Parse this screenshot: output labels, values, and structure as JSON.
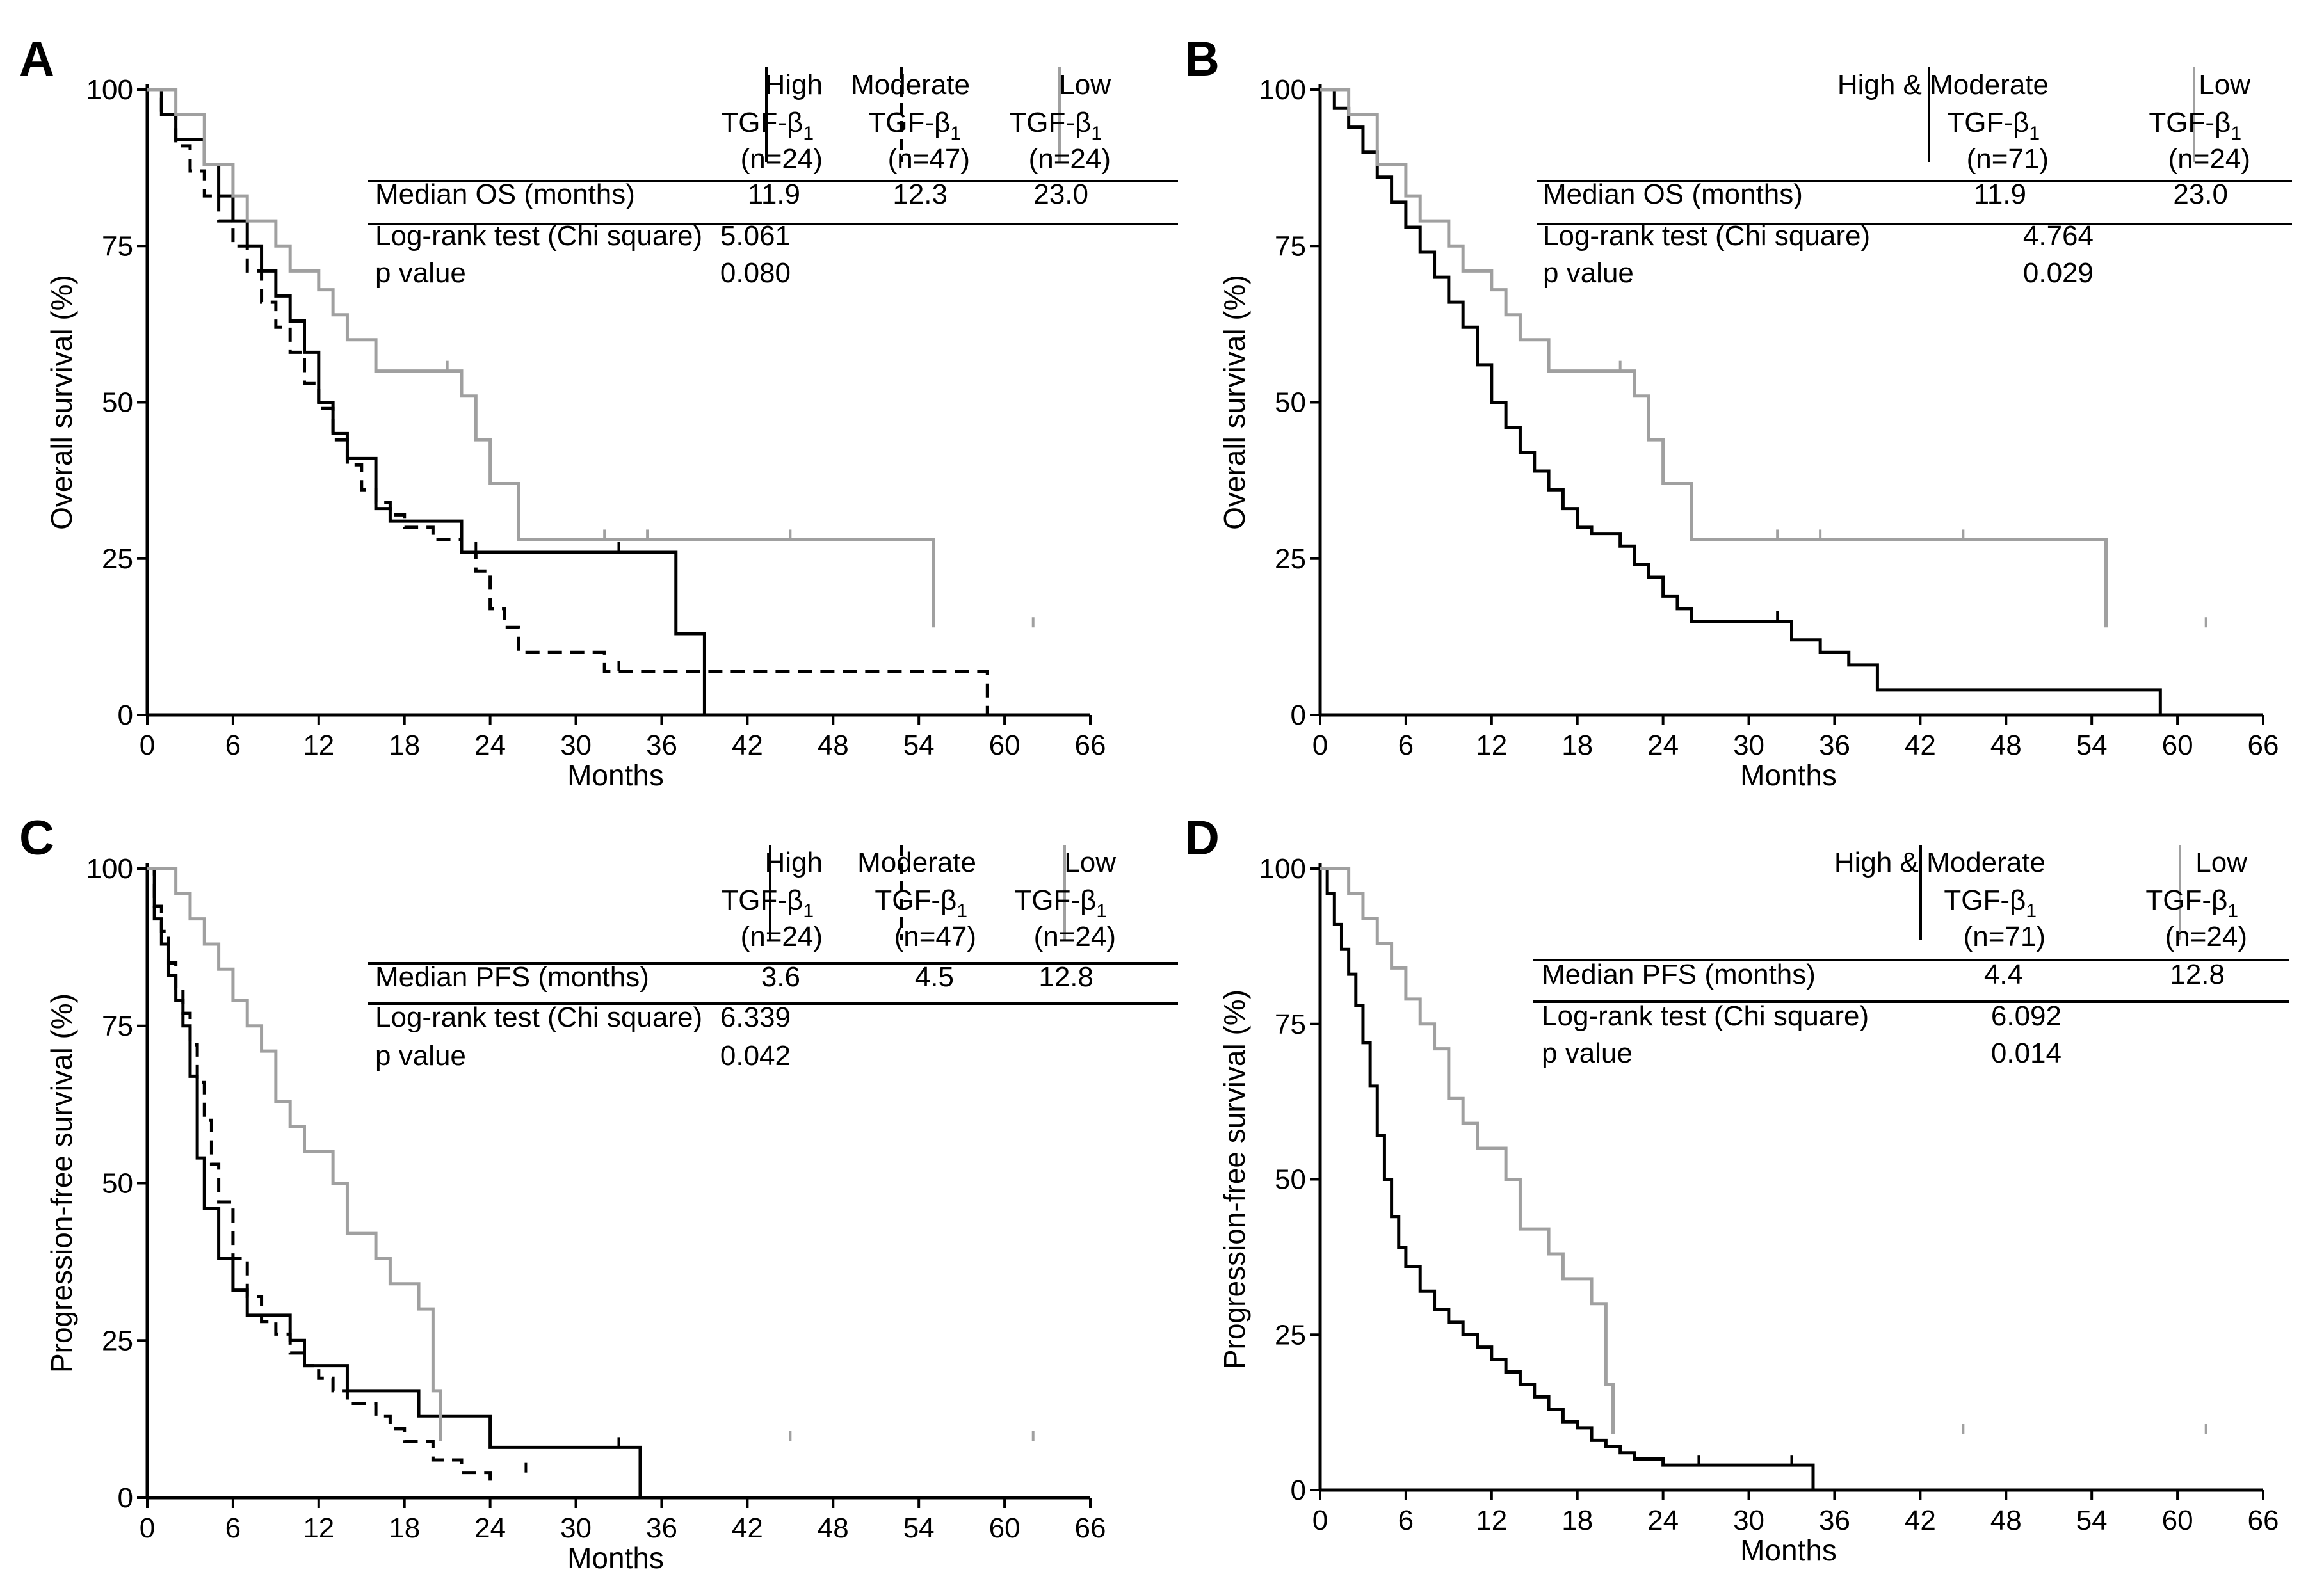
{
  "chart_data": [
    {
      "type": "line",
      "panel": "A",
      "xlabel": "Months",
      "ylabel": "Overall survival (%)",
      "xlim": [
        0,
        66
      ],
      "ylim": [
        0,
        100
      ],
      "xticks": [
        0,
        6,
        12,
        18,
        24,
        30,
        36,
        42,
        48,
        54,
        60,
        66
      ],
      "yticks": [
        0,
        25,
        50,
        75,
        100
      ],
      "grid": false,
      "table": {
        "columns": [
          {
            "name": "High",
            "label": "TGF-β",
            "sub": "1",
            "n": "(n=24)",
            "style": "solid"
          },
          {
            "name": "Moderate",
            "label": "TGF-β",
            "sub": "1",
            "n": "(n=47)",
            "style": "dashed"
          },
          {
            "name": "Low",
            "label": "TGF-β",
            "sub": "1",
            "n": "(n=24)",
            "style": "gray"
          }
        ],
        "rows": [
          {
            "label": "Median OS (months)",
            "values": [
              "11.9",
              "12.3",
              "23.0"
            ]
          },
          {
            "label": "Log-rank test (Chi square)",
            "values": [
              "5.061",
              "",
              ""
            ]
          },
          {
            "label": "p value",
            "values": [
              "0.080",
              "",
              ""
            ]
          }
        ]
      },
      "series": [
        {
          "style": "solid",
          "x": [
            0,
            1,
            2,
            4,
            5,
            6,
            7,
            8,
            9,
            10,
            11,
            12,
            13,
            14,
            16,
            17,
            22,
            37,
            39
          ],
          "y": [
            100,
            96,
            92,
            88,
            83,
            79,
            75,
            71,
            67,
            63,
            58,
            50,
            45,
            41,
            33,
            31,
            26,
            13,
            0
          ],
          "censor_x": [
            23,
            33
          ],
          "censor_y": [
            26,
            26
          ]
        },
        {
          "style": "dashed",
          "x": [
            0,
            1,
            2,
            3,
            4,
            5,
            6,
            7,
            8,
            9,
            10,
            11,
            12,
            13,
            14,
            15,
            16,
            17,
            18,
            20,
            22,
            23,
            24,
            25,
            26,
            32,
            58.8
          ],
          "y": [
            100,
            96,
            91,
            87,
            83,
            79,
            75,
            71,
            66,
            62,
            58,
            53,
            49,
            44,
            40,
            36,
            34,
            32,
            30,
            28,
            26,
            23,
            17,
            14,
            10,
            7,
            0
          ],
          "censor_x": [
            33
          ],
          "censor_y": [
            7
          ]
        },
        {
          "style": "gray",
          "x": [
            0,
            2,
            4,
            6,
            7,
            9,
            10,
            12,
            13,
            14,
            16,
            18,
            21,
            22,
            23,
            24,
            26,
            55
          ],
          "y": [
            100,
            96,
            88,
            83,
            79,
            75,
            71,
            68,
            64,
            60,
            55,
            55,
            55,
            51,
            44,
            37,
            28,
            14
          ],
          "censor_x": [
            21,
            32,
            35,
            45,
            62
          ],
          "censor_y": [
            55,
            28,
            28,
            28,
            14
          ]
        }
      ]
    },
    {
      "type": "line",
      "panel": "B",
      "xlabel": "Months",
      "ylabel": "Overall survival (%)",
      "xlim": [
        0,
        66
      ],
      "ylim": [
        0,
        100
      ],
      "xticks": [
        0,
        6,
        12,
        18,
        24,
        30,
        36,
        42,
        48,
        54,
        60,
        66
      ],
      "yticks": [
        0,
        25,
        50,
        75,
        100
      ],
      "grid": false,
      "table": {
        "columns": [
          {
            "name": "High & Moderate",
            "label": "TGF-β",
            "sub": "1",
            "n": "(n=71)",
            "style": "solid"
          },
          {
            "name": "Low",
            "label": "TGF-β",
            "sub": "1",
            "n": "(n=24)",
            "style": "gray"
          }
        ],
        "rows": [
          {
            "label": "Median OS (months)",
            "values": [
              "11.9",
              "23.0"
            ]
          },
          {
            "label": "Log-rank test (Chi square)",
            "values": [
              "4.764",
              ""
            ]
          },
          {
            "label": "p value",
            "values": [
              "0.029",
              ""
            ]
          }
        ]
      },
      "series": [
        {
          "style": "solid",
          "x": [
            0,
            1,
            2,
            3,
            4,
            5,
            6,
            7,
            8,
            9,
            10,
            11,
            12,
            13,
            14,
            15,
            16,
            17,
            18,
            19,
            21,
            22,
            23,
            24,
            25,
            26,
            33,
            35,
            37,
            39,
            58.8
          ],
          "y": [
            100,
            97,
            94,
            90,
            86,
            82,
            78,
            74,
            70,
            66,
            62,
            56,
            50,
            46,
            42,
            39,
            36,
            33,
            30,
            29,
            27,
            24,
            22,
            19,
            17,
            15,
            12,
            10,
            8,
            4,
            0
          ],
          "censor_x": [
            23,
            32
          ],
          "censor_y": [
            22,
            15
          ]
        },
        {
          "style": "gray",
          "x": [
            0,
            2,
            4,
            6,
            7,
            9,
            10,
            12,
            13,
            14,
            16,
            18,
            21,
            22,
            23,
            24,
            26,
            55
          ],
          "y": [
            100,
            96,
            88,
            83,
            79,
            75,
            71,
            68,
            64,
            60,
            55,
            55,
            55,
            51,
            44,
            37,
            28,
            14
          ],
          "censor_x": [
            21,
            32,
            35,
            45,
            62
          ],
          "censor_y": [
            55,
            28,
            28,
            28,
            14
          ]
        }
      ]
    },
    {
      "type": "line",
      "panel": "C",
      "xlabel": "Months",
      "ylabel": "Progression-free survival (%)",
      "xlim": [
        0,
        66
      ],
      "ylim": [
        0,
        100
      ],
      "xticks": [
        0,
        6,
        12,
        18,
        24,
        30,
        36,
        42,
        48,
        54,
        60,
        66
      ],
      "yticks": [
        0,
        25,
        50,
        75,
        100
      ],
      "grid": false,
      "table": {
        "columns": [
          {
            "name": "High",
            "label": "TGF-β",
            "sub": "1",
            "n": "(n=24)",
            "style": "solid"
          },
          {
            "name": "Moderate",
            "label": "TGF-β",
            "sub": "1",
            "n": "(n=47)",
            "style": "dashed"
          },
          {
            "name": "Low",
            "label": "TGF-β",
            "sub": "1",
            "n": "(n=24)",
            "style": "gray"
          }
        ],
        "rows": [
          {
            "label": "Median PFS (months)",
            "values": [
              "3.6",
              "4.5",
              "12.8"
            ]
          },
          {
            "label": "Log-rank test (Chi square)",
            "values": [
              "6.339",
              "",
              ""
            ]
          },
          {
            "label": "p value",
            "values": [
              "0.042",
              "",
              ""
            ]
          }
        ]
      },
      "series": [
        {
          "style": "solid",
          "x": [
            0,
            0.5,
            1,
            1.5,
            2,
            2.5,
            3,
            3.5,
            4,
            5,
            6,
            7,
            8,
            10,
            11,
            12,
            14,
            18,
            19,
            24,
            34.5
          ],
          "y": [
            100,
            92,
            88,
            83,
            79,
            75,
            67,
            54,
            46,
            38,
            33,
            29,
            29,
            25,
            21,
            21,
            17,
            17,
            13,
            8,
            0
          ],
          "censor_x": [
            33
          ],
          "censor_y": [
            8
          ]
        },
        {
          "style": "dashed",
          "x": [
            0,
            0.5,
            1,
            1.5,
            2,
            2.5,
            3,
            3.5,
            4,
            4.5,
            5,
            6,
            7,
            8,
            9,
            10,
            11,
            12,
            13,
            14,
            16,
            17,
            18,
            20,
            22,
            24
          ],
          "y": [
            100,
            94,
            90,
            85,
            81,
            77,
            72,
            66,
            60,
            53,
            47,
            38,
            32,
            28,
            26,
            23,
            21,
            19,
            17,
            15,
            13,
            11,
            9,
            6,
            4,
            2
          ],
          "censor_x": [
            26.5
          ],
          "censor_y": [
            4
          ]
        },
        {
          "style": "gray",
          "x": [
            0,
            2,
            3,
            4,
            5,
            6,
            7,
            8,
            9,
            10,
            11,
            13,
            14,
            16,
            17,
            19,
            20,
            20.5
          ],
          "y": [
            100,
            96,
            92,
            88,
            84,
            79,
            75,
            71,
            63,
            59,
            55,
            50,
            42,
            38,
            34,
            30,
            17,
            9
          ],
          "censor_x": [
            45,
            62
          ],
          "censor_y": [
            9,
            9
          ]
        }
      ]
    },
    {
      "type": "line",
      "panel": "D",
      "xlabel": "Months",
      "ylabel": "Progression-free survival (%)",
      "xlim": [
        0,
        66
      ],
      "ylim": [
        0,
        100
      ],
      "xticks": [
        0,
        6,
        12,
        18,
        24,
        30,
        36,
        42,
        48,
        54,
        60,
        66
      ],
      "yticks": [
        0,
        25,
        50,
        75,
        100
      ],
      "grid": false,
      "table": {
        "columns": [
          {
            "name": "High & Moderate",
            "label": "TGF-β",
            "sub": "1",
            "n": "(n=71)",
            "style": "solid"
          },
          {
            "name": "Low",
            "label": "TGF-β",
            "sub": "1",
            "n": "(n=24)",
            "style": "gray"
          }
        ],
        "rows": [
          {
            "label": "Median PFS (months)",
            "values": [
              "4.4",
              "12.8"
            ]
          },
          {
            "label": "Log-rank test (Chi square)",
            "values": [
              "6.092",
              ""
            ]
          },
          {
            "label": "p value",
            "values": [
              "0.014",
              ""
            ]
          }
        ]
      },
      "series": [
        {
          "style": "solid",
          "x": [
            0,
            0.5,
            1,
            1.5,
            2,
            2.5,
            3,
            3.5,
            4,
            4.5,
            5,
            5.5,
            6,
            7,
            8,
            9,
            10,
            11,
            12,
            13,
            14,
            15,
            16,
            17,
            18,
            19,
            20,
            21,
            22,
            24,
            34.5
          ],
          "y": [
            100,
            96,
            91,
            87,
            83,
            78,
            72,
            65,
            57,
            50,
            44,
            39,
            36,
            32,
            29,
            27,
            25,
            23,
            21,
            19,
            17,
            15,
            13,
            11,
            10,
            8,
            7,
            6,
            5,
            4,
            0
          ],
          "censor_x": [
            26.5,
            33
          ],
          "censor_y": [
            4,
            4
          ]
        },
        {
          "style": "gray",
          "x": [
            0,
            2,
            3,
            4,
            5,
            6,
            7,
            8,
            9,
            10,
            11,
            13,
            14,
            16,
            17,
            19,
            20,
            20.5
          ],
          "y": [
            100,
            96,
            92,
            88,
            84,
            79,
            75,
            71,
            63,
            59,
            55,
            50,
            42,
            38,
            34,
            30,
            17,
            9
          ],
          "censor_x": [
            45,
            62
          ],
          "censor_y": [
            9,
            9
          ]
        }
      ]
    }
  ]
}
